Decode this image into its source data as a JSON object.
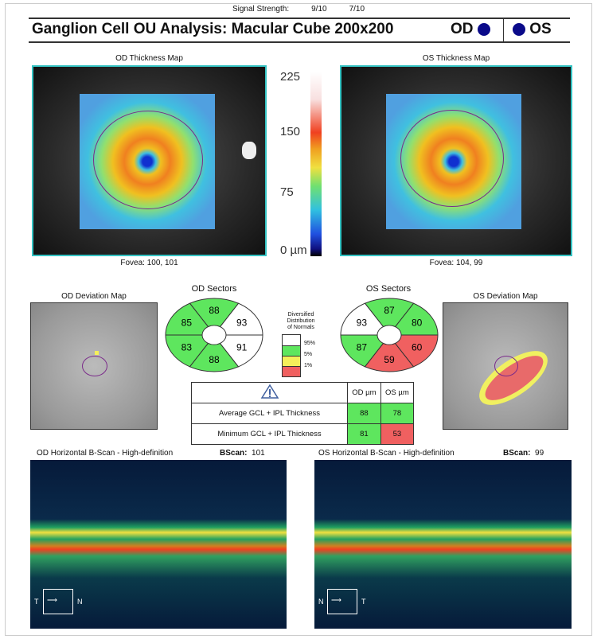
{
  "header": {
    "signal_label": "Signal Strength:",
    "signal_od": "9/10",
    "signal_os": "7/10",
    "title": "Ganglion Cell OU Analysis: Macular Cube 200x200",
    "od_label": "OD",
    "os_label": "OS"
  },
  "thickness": {
    "od_title": "OD Thickness Map",
    "os_title": "OS Thickness Map",
    "od_fovea": "Fovea: 100, 101",
    "os_fovea": "Fovea: 104, 99",
    "scale_ticks": [
      "225",
      "150",
      "75",
      "0 µm"
    ]
  },
  "deviation": {
    "od_title": "OD Deviation Map",
    "os_title": "OS Deviation Map"
  },
  "sectors": {
    "od_title": "OD Sectors",
    "os_title": "OS Sectors",
    "od": [
      {
        "pos": "superonasal",
        "value": "93",
        "status": "white"
      },
      {
        "pos": "superior",
        "value": "88",
        "status": "green"
      },
      {
        "pos": "superotemporal",
        "value": "85",
        "status": "green"
      },
      {
        "pos": "inferotemporal",
        "value": "83",
        "status": "green"
      },
      {
        "pos": "inferior",
        "value": "88",
        "status": "green"
      },
      {
        "pos": "inferonasal",
        "value": "91",
        "status": "white"
      }
    ],
    "os": [
      {
        "pos": "superotemporal",
        "value": "80",
        "status": "green"
      },
      {
        "pos": "superior",
        "value": "87",
        "status": "green"
      },
      {
        "pos": "superonasal",
        "value": "93",
        "status": "white"
      },
      {
        "pos": "inferonasal",
        "value": "87",
        "status": "green"
      },
      {
        "pos": "inferior",
        "value": "59",
        "status": "red"
      },
      {
        "pos": "inferotemporal",
        "value": "60",
        "status": "red"
      }
    ]
  },
  "legend": {
    "title_lines": [
      "Diversified",
      "Distribution",
      "of Normals"
    ],
    "labels": [
      "95%",
      "5%",
      "1%"
    ]
  },
  "colors": {
    "white": "#ffffff",
    "green": "#5ee65e",
    "yellow": "#f5f05a",
    "red": "#f06060"
  },
  "table": {
    "col_od": "OD µm",
    "col_os": "OS µm",
    "rows": [
      {
        "label": "Average GCL + IPL Thickness",
        "od": "88",
        "os": "78",
        "od_status": "green",
        "os_status": "green"
      },
      {
        "label": "Minimum GCL + IPL Thickness",
        "od": "81",
        "os": "53",
        "od_status": "green",
        "os_status": "red"
      }
    ]
  },
  "bscan": {
    "od_title": "OD Horizontal B-Scan - High-definition",
    "os_title": "OS Horizontal B-Scan - High-definition",
    "bscan_label": "BScan:",
    "od_num": "101",
    "os_num": "99",
    "od_left": "T",
    "od_right": "N",
    "os_left": "N",
    "os_right": "T"
  }
}
